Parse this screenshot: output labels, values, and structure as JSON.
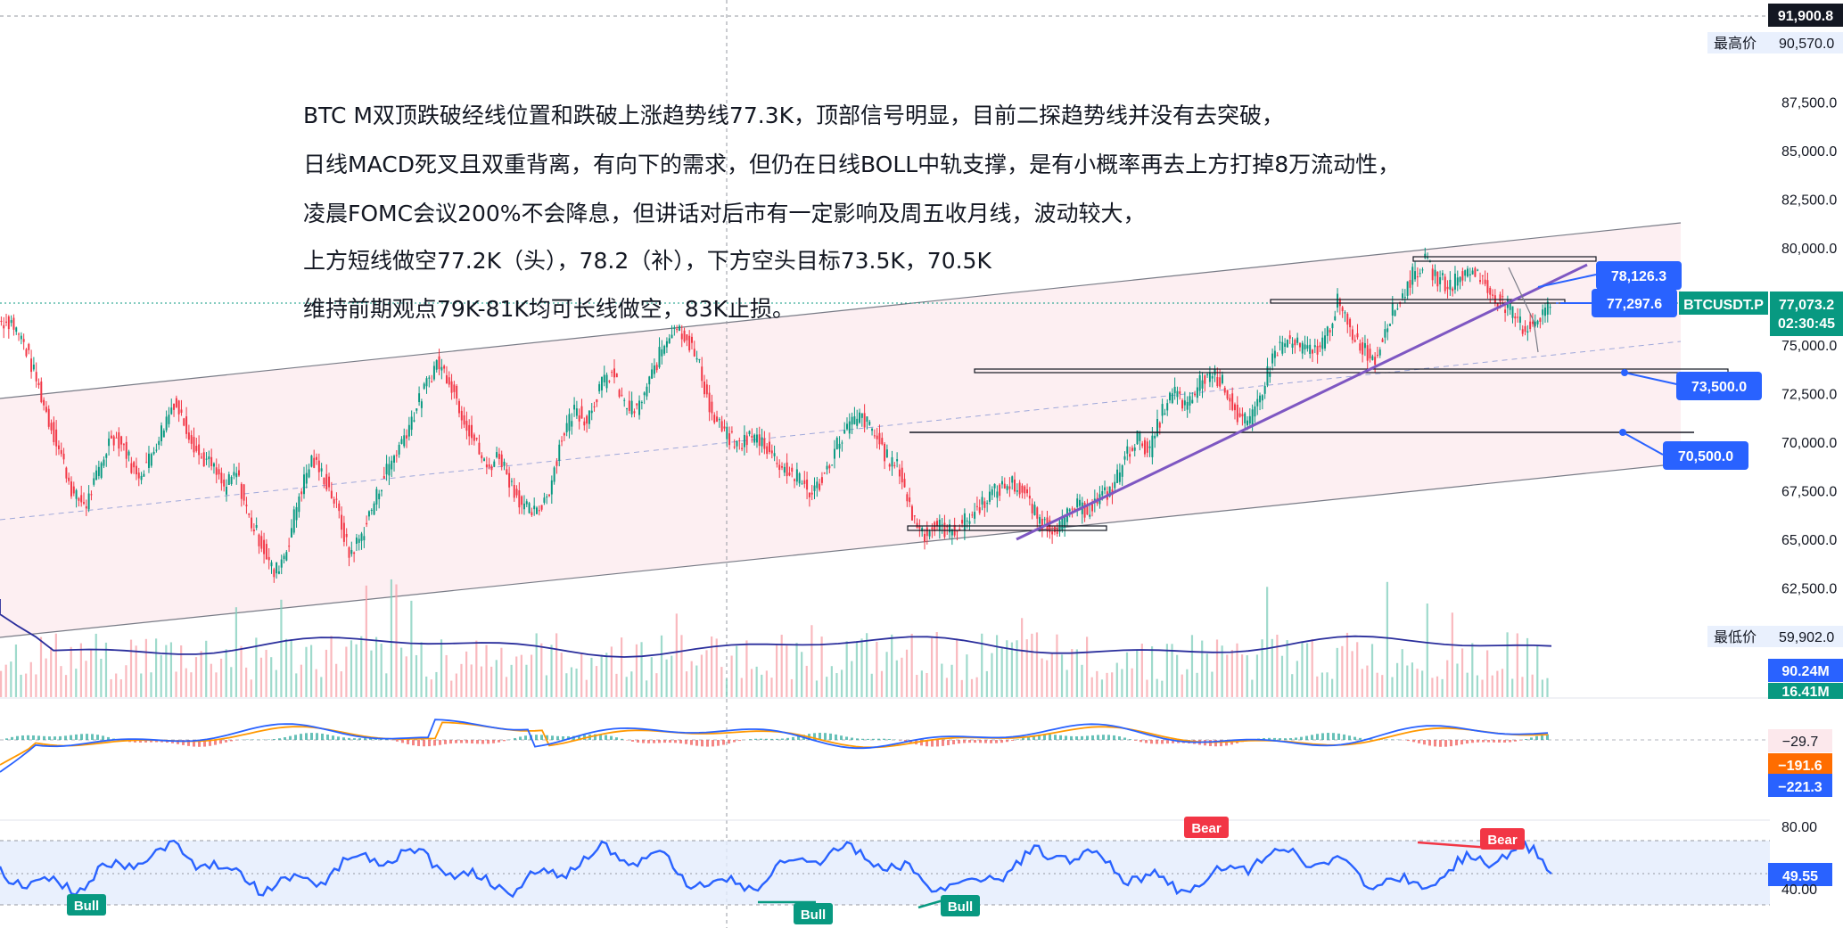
{
  "symbol": "BTCUSDT.P",
  "countdown": "02:30:45",
  "annotations": [
    "BTC M双顶跌破经线位置和跌破上涨趋势线77.3K，顶部信号明显，目前二探趋势线并没有去突破，",
    "日线MACD死叉且双重背离，有向下的需求，但仍在日线BOLL中轨支撑，是有小概率再去上方打掉8万流动性，",
    "凌晨FOMC会议200%不会降息，但讲话对后市有一定影响及周五收月线，波动较大，",
    "上方短线做空77.2K（头），78.2（补），下方空头目标73.5K，70.5K",
    "维持前期观点79K-81K均可长线做空，83K止损。"
  ],
  "price_tags": {
    "top": "91,900.8",
    "high_label": "最高价",
    "high_value": "90,570.0",
    "low_label": "最低价",
    "low_value": "59,902.0",
    "current": "77,073.2"
  },
  "level_tags": [
    "78,126.3",
    "77,297.6",
    "73,500.0",
    "70,500.0"
  ],
  "volume_tags": [
    "90.24M",
    "16.41M"
  ],
  "macd_tags": [
    "−29.7",
    "−191.6",
    "−221.3"
  ],
  "rsi_tags": {
    "value": "49.55",
    "upper": "80.00",
    "lower": "40.00"
  },
  "signals": {
    "bull": "Bull",
    "bear": "Bear"
  },
  "colors": {
    "up": "#089981",
    "down": "#f23645",
    "blue_tag": "#2962ff",
    "trend": "#7e57c2",
    "rsi": "#2962ff",
    "channel": "#fce8ec"
  },
  "chart_data": {
    "type": "candlestick",
    "title": "",
    "y_axis": {
      "ticks": [
        "87,500.0",
        "85,000.0",
        "82,500.0",
        "80,000.0",
        "77,500.0",
        "75,000.0",
        "72,500.0",
        "70,000.0",
        "67,500.0",
        "65,000.0",
        "62,500.0"
      ],
      "range": [
        61000,
        92000
      ]
    },
    "horizontal_levels": [
      78126.3,
      77297.6,
      73500.0,
      70500.0
    ],
    "series": [
      {
        "name": "price",
        "values": [
          76200,
          75100,
          73200,
          71100,
          69300,
          67200,
          66800,
          68500,
          70400,
          69800,
          68200,
          69100,
          70600,
          72100,
          70800,
          69300,
          68800,
          67600,
          68400,
          66100,
          64800,
          63200,
          64500,
          67300,
          69100,
          68200,
          66700,
          64200,
          65200,
          66900,
          68600,
          69800,
          71200,
          72700,
          74100,
          73300,
          71500,
          70100,
          68600,
          69400,
          67800,
          66600,
          66300,
          67600,
          70300,
          71700,
          71200,
          72800,
          73600,
          71900,
          71600,
          73100,
          74800,
          76100,
          75400,
          73900,
          71300,
          70500,
          69800,
          70300,
          70100,
          69200,
          68500,
          68100,
          67300,
          68300,
          69900,
          70900,
          71300,
          70400,
          69200,
          68600,
          66200,
          65300,
          65700,
          65400,
          65800,
          66400,
          67200,
          67600,
          67900,
          67300,
          66100,
          65600,
          65800,
          66700,
          66500,
          67100,
          67600,
          69200,
          70300,
          69500,
          71600,
          72600,
          71700,
          73100,
          73600,
          72900,
          71300,
          70900,
          72800,
          74700,
          75200,
          74900,
          74600,
          75300,
          77200,
          75700,
          74900,
          74200,
          76300,
          77300,
          78600,
          79300,
          78400,
          78100,
          78600,
          78900,
          77800,
          77300,
          76600,
          75800,
          76400,
          77100
        ]
      }
    ],
    "rsi": {
      "upper": 80,
      "lower": 40,
      "current": 49.55
    }
  }
}
